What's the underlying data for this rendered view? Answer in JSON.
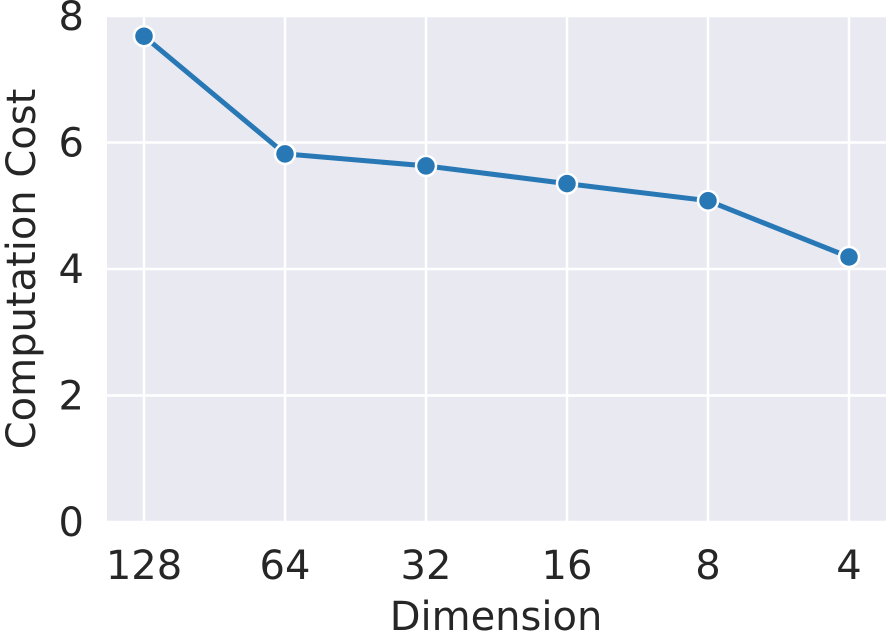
{
  "chart_data": {
    "type": "line",
    "categories": [
      "128",
      "64",
      "32",
      "16",
      "8",
      "4"
    ],
    "series": [
      {
        "values": [
          7.68,
          5.82,
          5.63,
          5.35,
          5.08,
          4.19
        ],
        "color": "#2878b5"
      }
    ],
    "title": "",
    "xlabel": "Dimension",
    "ylabel": "Computation Cost",
    "ylim": [
      0,
      8
    ],
    "yticks": [
      "0",
      "2",
      "4",
      "6",
      "8"
    ],
    "grid": true,
    "background_color": "#e8e9f1",
    "grid_color": "#ffffff",
    "marker": "circle",
    "legend": "none"
  }
}
